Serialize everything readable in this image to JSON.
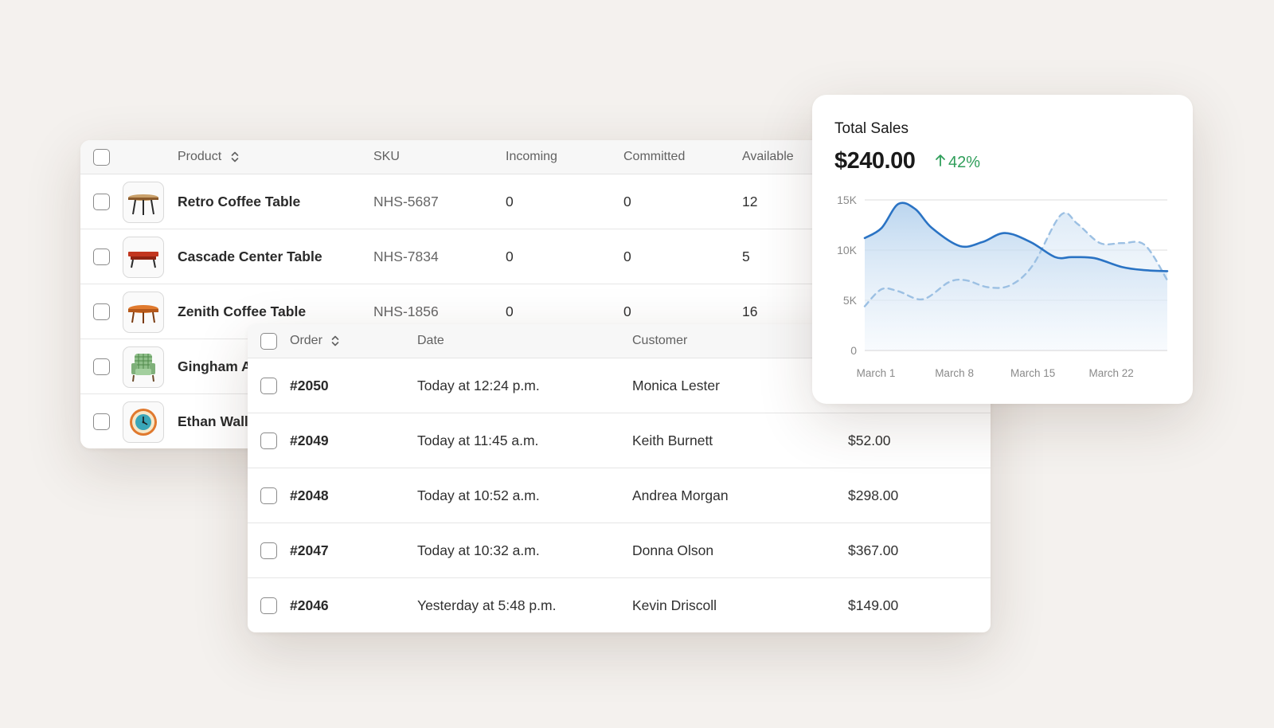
{
  "products": {
    "columns": {
      "product": "Product",
      "sku": "SKU",
      "incoming": "Incoming",
      "committed": "Committed",
      "available": "Available"
    },
    "rows": [
      {
        "name": "Retro Coffee Table",
        "sku": "NHS-5687",
        "incoming": "0",
        "committed": "0",
        "available": "12",
        "icon": "round-table-icon"
      },
      {
        "name": "Cascade Center Table",
        "sku": "NHS-7834",
        "incoming": "0",
        "committed": "0",
        "available": "5",
        "icon": "red-table-icon"
      },
      {
        "name": "Zenith Coffee Table",
        "sku": "NHS-1856",
        "incoming": "0",
        "committed": "0",
        "available": "16",
        "icon": "orange-table-icon"
      },
      {
        "name": "Gingham A",
        "icon": "armchair-icon"
      },
      {
        "name": "Ethan Wall",
        "icon": "wall-clock-icon"
      }
    ]
  },
  "orders": {
    "columns": {
      "order": "Order",
      "date": "Date",
      "customer": "Customer"
    },
    "rows": [
      {
        "id": "#2050",
        "date": "Today at 12:24 p.m.",
        "customer": "Monica Lester",
        "amount": ""
      },
      {
        "id": "#2049",
        "date": "Today at 11:45 a.m.",
        "customer": "Keith Burnett",
        "amount": "$52.00"
      },
      {
        "id": "#2048",
        "date": "Today at 10:52 a.m.",
        "customer": "Andrea Morgan",
        "amount": "$298.00"
      },
      {
        "id": "#2047",
        "date": "Today at 10:32 a.m.",
        "customer": "Donna Olson",
        "amount": "$367.00"
      },
      {
        "id": "#2046",
        "date": "Yesterday at 5:48 p.m.",
        "customer": "Kevin Driscoll",
        "amount": "$149.00"
      }
    ]
  },
  "sales": {
    "title": "Total Sales",
    "value": "$240.00",
    "change": "42%",
    "change_direction": "up",
    "change_color": "#2f9e5a"
  },
  "chart_data": {
    "type": "area",
    "title": "Total Sales",
    "x": [
      1,
      4,
      8,
      11,
      14,
      17,
      19,
      21,
      23,
      25,
      28
    ],
    "x_ticks": [
      {
        "day": 1,
        "label": "March 1"
      },
      {
        "day": 8,
        "label": "March 8"
      },
      {
        "day": 15,
        "label": "March 15"
      },
      {
        "day": 22,
        "label": "March 22"
      }
    ],
    "y_ticks": [
      {
        "value": 0,
        "label": "0"
      },
      {
        "value": 5000,
        "label": "5K"
      },
      {
        "value": 10000,
        "label": "10K"
      },
      {
        "value": 15000,
        "label": "15K"
      }
    ],
    "ylim": [
      0,
      15000
    ],
    "xlim": [
      0,
      27
    ],
    "grid": true,
    "series": [
      {
        "style": "solid-area",
        "color": "#2a73c4",
        "x": [
          0,
          1.5,
          3,
          4.5,
          6,
          8.5,
          10.5,
          12.5,
          14.8,
          17,
          18.5,
          20.5,
          23,
          25,
          27
        ],
        "values": [
          11200,
          12200,
          14600,
          14100,
          12200,
          10400,
          10800,
          11700,
          10800,
          9300,
          9300,
          9200,
          8300,
          8000,
          7900
        ]
      },
      {
        "style": "dashed-area",
        "color": "#9cc0e3",
        "x": [
          0,
          1.5,
          3,
          5.2,
          7.5,
          9,
          11,
          13,
          15,
          17.5,
          19,
          21,
          23,
          25,
          27
        ],
        "values": [
          4400,
          6100,
          5900,
          5100,
          6800,
          7000,
          6300,
          6500,
          8500,
          13500,
          12600,
          10700,
          10700,
          10500,
          7000
        ]
      }
    ]
  }
}
